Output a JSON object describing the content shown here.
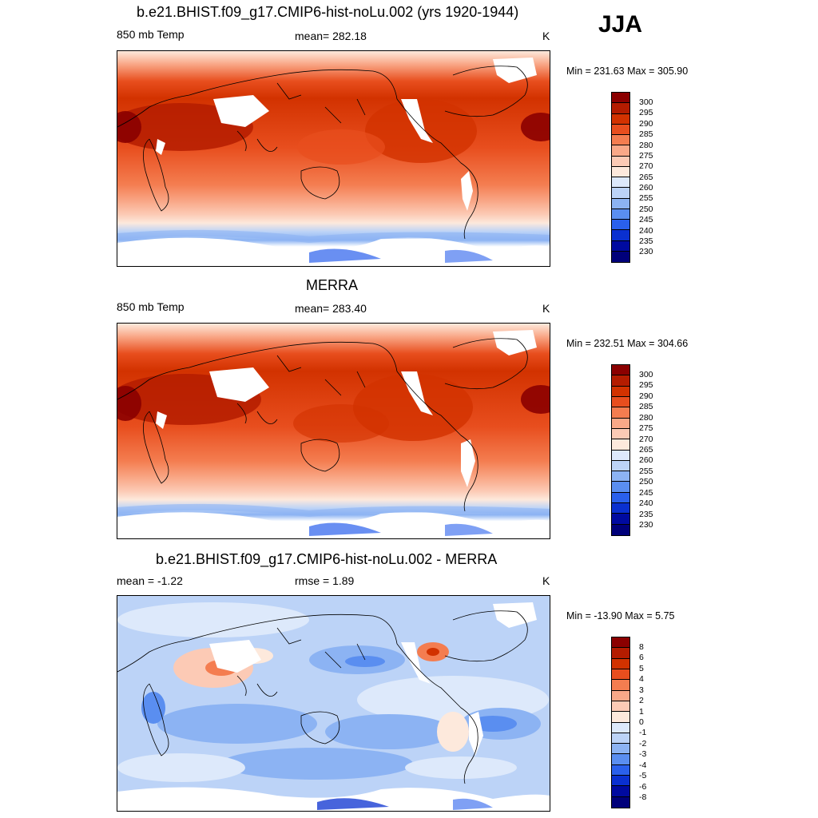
{
  "season": "JJA",
  "panels": [
    {
      "title": "b.e21.BHIST.f09_g17.CMIP6-hist-noLu.002 (yrs 1920-1944)",
      "left": "850 mb Temp",
      "center": "mean= 282.18",
      "units": "K",
      "minmax": "Min = 231.63 Max = 305.90",
      "colorbar_labels": [
        "300",
        "295",
        "290",
        "285",
        "280",
        "275",
        "270",
        "265",
        "260",
        "255",
        "250",
        "245",
        "240",
        "235",
        "230"
      ]
    },
    {
      "title": "MERRA",
      "left": "850 mb Temp",
      "center": "mean= 283.40",
      "units": "K",
      "minmax": "Min = 232.51 Max = 304.66",
      "colorbar_labels": [
        "300",
        "295",
        "290",
        "285",
        "280",
        "275",
        "270",
        "265",
        "260",
        "255",
        "250",
        "245",
        "240",
        "235",
        "230"
      ]
    },
    {
      "title": "b.e21.BHIST.f09_g17.CMIP6-hist-noLu.002 - MERRA",
      "left": "mean =  -1.22",
      "center": "rmse =   1.89",
      "units": "K",
      "minmax": "Min = -13.90 Max =   5.75",
      "colorbar_labels": [
        "8",
        "6",
        "5",
        "4",
        "3",
        "2",
        "1",
        "0",
        "-1",
        "-2",
        "-3",
        "-4",
        "-5",
        "-6",
        "-8"
      ]
    }
  ],
  "colors": {
    "temp_scale": [
      "#8b0000",
      "#b41c00",
      "#d23200",
      "#e84e1e",
      "#f47d50",
      "#f9a888",
      "#fccab5",
      "#fde9dc",
      "#dde9fb",
      "#bcd3f7",
      "#8cb3f3",
      "#5a8ef0",
      "#2a60ec",
      "#0a30d0",
      "#000aa0",
      "#00007a"
    ],
    "diff_scale": [
      "#8b0000",
      "#b41c00",
      "#d23200",
      "#e84e1e",
      "#f47d50",
      "#f9a888",
      "#fccab5",
      "#fde9dc",
      "#dde9fb",
      "#bcd3f7",
      "#8cb3f3",
      "#5a8ef0",
      "#2a60ec",
      "#0a30d0",
      "#000aa0",
      "#00007a"
    ],
    "missing": "#ffffff",
    "coast": "#000000"
  }
}
